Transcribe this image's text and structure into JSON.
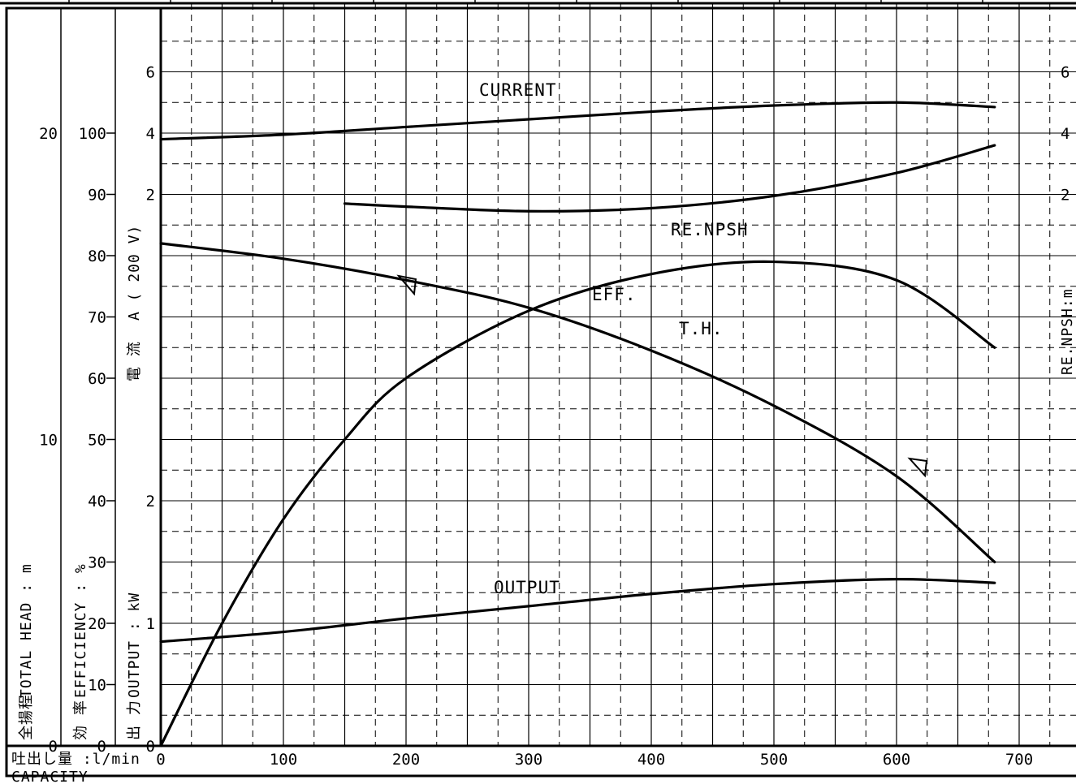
{
  "chart_data": {
    "type": "line",
    "title": "",
    "x_axis": {
      "label_jp": "吐出し量 :l/min",
      "label_en": "CAPACITY",
      "range": [
        0,
        750
      ],
      "ticks": [
        0,
        100,
        200,
        300,
        400,
        500,
        600,
        700
      ]
    },
    "y_axes": {
      "total_head": {
        "label_jp": "全揚程",
        "label": "TOTAL HEAD : m",
        "range": [
          0,
          24
        ],
        "ticks": [
          0,
          10,
          20
        ]
      },
      "efficiency": {
        "label_jp": "効 率",
        "label": "EFFICIENCY : %",
        "range": [
          0,
          120
        ],
        "ticks": [
          0,
          10,
          20,
          30,
          40,
          50,
          60,
          70,
          80,
          90,
          100
        ]
      },
      "output": {
        "label_jp": "出 力",
        "label": "OUTPUT : kW",
        "range": [
          0,
          4.5
        ],
        "ticks": [
          0,
          1,
          2
        ]
      },
      "current": {
        "label_jp": "電 流",
        "label": "A ( 200 V)",
        "range": [
          0,
          9.5
        ],
        "ticks": [
          2,
          4,
          6
        ]
      },
      "npsh": {
        "label": "RE.NPSH:m",
        "range": [
          0,
          8
        ],
        "ticks": [
          2,
          4,
          6
        ]
      }
    },
    "grid": true,
    "series": [
      {
        "name": "CURRENT",
        "axis": "current",
        "x": [
          0,
          100,
          200,
          300,
          400,
          500,
          600,
          680
        ],
        "y": [
          3.8,
          3.95,
          4.2,
          4.45,
          4.7,
          4.9,
          5.0,
          4.85
        ]
      },
      {
        "name": "RE.NPSH",
        "axis": "npsh",
        "x": [
          150,
          200,
          300,
          400,
          500,
          600,
          680
        ],
        "y": [
          1.7,
          1.6,
          1.45,
          1.55,
          1.95,
          2.7,
          3.6
        ]
      },
      {
        "name": "EFF.",
        "axis": "efficiency",
        "x": [
          0,
          50,
          100,
          150,
          200,
          300,
          400,
          500,
          600,
          680
        ],
        "y": [
          0,
          20,
          37,
          50,
          60,
          71,
          77,
          79,
          76,
          65
        ]
      },
      {
        "name": "T.H.",
        "axis": "total_head",
        "x": [
          0,
          100,
          200,
          300,
          400,
          500,
          600,
          680
        ],
        "y": [
          16.4,
          15.9,
          15.2,
          14.3,
          12.9,
          11.1,
          8.8,
          6.0
        ]
      },
      {
        "name": "OUTPUT",
        "axis": "output",
        "x": [
          0,
          100,
          200,
          300,
          400,
          500,
          600,
          680
        ],
        "y": [
          0.85,
          0.93,
          1.04,
          1.14,
          1.24,
          1.32,
          1.36,
          1.33
        ]
      }
    ]
  }
}
